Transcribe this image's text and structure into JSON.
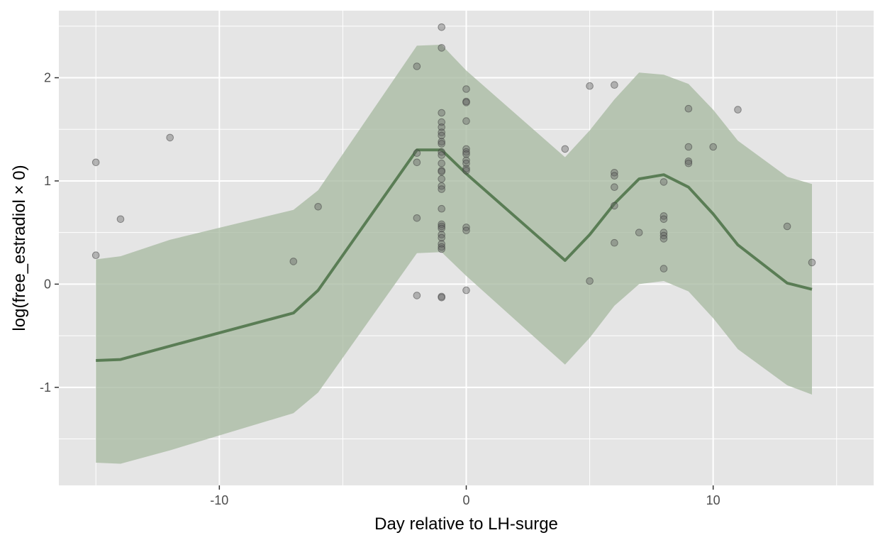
{
  "chart_data": {
    "type": "line",
    "title": "",
    "xlabel": "Day relative to LH-surge",
    "ylabel": "log(free_estradiol × 0)",
    "xlim": [
      -16.5,
      16.5
    ],
    "ylim": [
      -1.95,
      2.65
    ],
    "x_ticks": [
      -10,
      0,
      10
    ],
    "x_tick_labels": [
      "-10",
      "0",
      "10"
    ],
    "y_ticks": [
      -1,
      0,
      1,
      2
    ],
    "y_tick_labels": [
      "-1",
      "0",
      "1",
      "2"
    ],
    "grid": true,
    "colors": {
      "panel_background": "#e5e5e5",
      "grid_line": "#ffffff",
      "ribbon": "#a5b89f",
      "line": "#5a7d55",
      "points": "#5f5f5f"
    },
    "series": [
      {
        "type": "line",
        "x": [
          -15,
          -14,
          -12,
          -7,
          -6,
          -2,
          -1,
          0,
          4,
          5,
          6,
          7,
          8,
          9,
          10,
          11,
          13,
          14
        ],
        "y": [
          -0.74,
          -0.73,
          -0.6,
          -0.28,
          -0.06,
          1.3,
          1.3,
          1.07,
          0.23,
          0.48,
          0.78,
          1.02,
          1.06,
          0.94,
          0.68,
          0.38,
          0.01,
          -0.05
        ],
        "ymin": [
          -1.73,
          -1.74,
          -1.61,
          -1.25,
          -1.05,
          0.3,
          0.31,
          0.08,
          -0.78,
          -0.52,
          -0.21,
          0.0,
          0.03,
          -0.07,
          -0.33,
          -0.63,
          -0.98,
          -1.07
        ],
        "ymax": [
          0.24,
          0.27,
          0.43,
          0.72,
          0.91,
          2.31,
          2.32,
          2.07,
          1.23,
          1.49,
          1.79,
          2.05,
          2.03,
          1.94,
          1.69,
          1.39,
          1.04,
          0.97
        ]
      },
      {
        "type": "scatter",
        "points": [
          [
            -15,
            1.18
          ],
          [
            -15,
            0.28
          ],
          [
            -14,
            0.63
          ],
          [
            -12,
            1.42
          ],
          [
            -7,
            0.22
          ],
          [
            -6,
            0.75
          ],
          [
            -2,
            2.11
          ],
          [
            -2,
            1.27
          ],
          [
            -2,
            1.18
          ],
          [
            -2,
            0.64
          ],
          [
            -2,
            -0.11
          ],
          [
            -1,
            2.49
          ],
          [
            -1,
            2.29
          ],
          [
            -1,
            1.66
          ],
          [
            -1,
            1.57
          ],
          [
            -1,
            1.52
          ],
          [
            -1,
            1.47
          ],
          [
            -1,
            1.44
          ],
          [
            -1,
            1.38
          ],
          [
            -1,
            1.36
          ],
          [
            -1,
            1.28
          ],
          [
            -1,
            1.25
          ],
          [
            -1,
            1.17
          ],
          [
            -1,
            1.1
          ],
          [
            -1,
            1.09
          ],
          [
            -1,
            1.02
          ],
          [
            -1,
            0.95
          ],
          [
            -1,
            0.92
          ],
          [
            -1,
            0.73
          ],
          [
            -1,
            0.58
          ],
          [
            -1,
            0.56
          ],
          [
            -1,
            0.54
          ],
          [
            -1,
            0.48
          ],
          [
            -1,
            0.45
          ],
          [
            -1,
            0.39
          ],
          [
            -1,
            0.36
          ],
          [
            -1,
            0.34
          ],
          [
            -1,
            -0.12
          ],
          [
            -1,
            -0.13
          ],
          [
            0,
            1.89
          ],
          [
            0,
            1.77
          ],
          [
            0,
            1.76
          ],
          [
            0,
            1.58
          ],
          [
            0,
            1.31
          ],
          [
            0,
            1.28
          ],
          [
            0,
            1.26
          ],
          [
            0,
            1.2
          ],
          [
            0,
            1.17
          ],
          [
            0,
            1.12
          ],
          [
            0,
            1.1
          ],
          [
            0,
            0.55
          ],
          [
            0,
            0.52
          ],
          [
            0,
            -0.06
          ],
          [
            4,
            1.31
          ],
          [
            5,
            1.92
          ],
          [
            5,
            0.03
          ],
          [
            6,
            1.93
          ],
          [
            6,
            1.08
          ],
          [
            6,
            1.05
          ],
          [
            6,
            0.94
          ],
          [
            6,
            0.76
          ],
          [
            6,
            0.4
          ],
          [
            7,
            0.5
          ],
          [
            8,
            0.99
          ],
          [
            8,
            0.66
          ],
          [
            8,
            0.63
          ],
          [
            8,
            0.5
          ],
          [
            8,
            0.47
          ],
          [
            8,
            0.44
          ],
          [
            8,
            0.15
          ],
          [
            9,
            1.7
          ],
          [
            9,
            1.33
          ],
          [
            9,
            1.19
          ],
          [
            9,
            1.17
          ],
          [
            10,
            1.33
          ],
          [
            11,
            1.69
          ],
          [
            13,
            0.56
          ],
          [
            14,
            0.21
          ]
        ]
      }
    ]
  }
}
